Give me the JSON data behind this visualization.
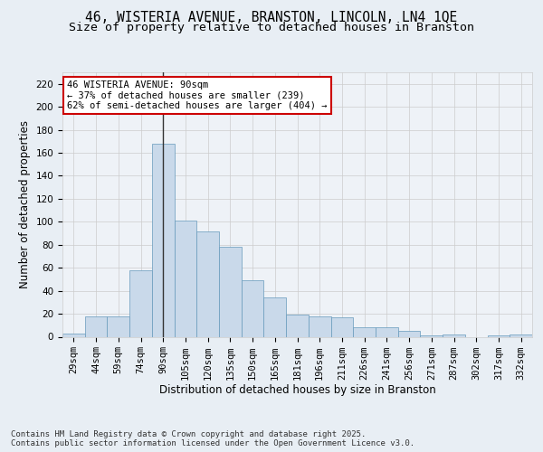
{
  "title_line1": "46, WISTERIA AVENUE, BRANSTON, LINCOLN, LN4 1QE",
  "title_line2": "Size of property relative to detached houses in Branston",
  "categories": [
    "29sqm",
    "44sqm",
    "59sqm",
    "74sqm",
    "90sqm",
    "105sqm",
    "120sqm",
    "135sqm",
    "150sqm",
    "165sqm",
    "181sqm",
    "196sqm",
    "211sqm",
    "226sqm",
    "241sqm",
    "256sqm",
    "271sqm",
    "287sqm",
    "302sqm",
    "317sqm",
    "332sqm"
  ],
  "values": [
    3,
    18,
    18,
    58,
    168,
    101,
    92,
    78,
    49,
    34,
    19,
    18,
    17,
    8,
    8,
    5,
    1,
    2,
    0,
    1,
    2
  ],
  "bar_color": "#c9d9ea",
  "bar_edge_color": "#6699bb",
  "vline_x": 4,
  "vline_color": "#333333",
  "xlabel": "Distribution of detached houses by size in Branston",
  "ylabel": "Number of detached properties",
  "ylim": [
    0,
    230
  ],
  "yticks": [
    0,
    20,
    40,
    60,
    80,
    100,
    120,
    140,
    160,
    180,
    200,
    220
  ],
  "annotation_title": "46 WISTERIA AVENUE: 90sqm",
  "annotation_line1": "← 37% of detached houses are smaller (239)",
  "annotation_line2": "62% of semi-detached houses are larger (404) →",
  "annotation_box_color": "#ffffff",
  "annotation_box_edge": "#cc0000",
  "grid_color": "#cccccc",
  "background_color": "#e8eef4",
  "plot_bg_color": "#eef2f7",
  "footer_line1": "Contains HM Land Registry data © Crown copyright and database right 2025.",
  "footer_line2": "Contains public sector information licensed under the Open Government Licence v3.0.",
  "title_fontsize": 10.5,
  "subtitle_fontsize": 9.5,
  "axis_label_fontsize": 8.5,
  "tick_fontsize": 7.5,
  "annotation_fontsize": 7.5,
  "footer_fontsize": 6.5
}
